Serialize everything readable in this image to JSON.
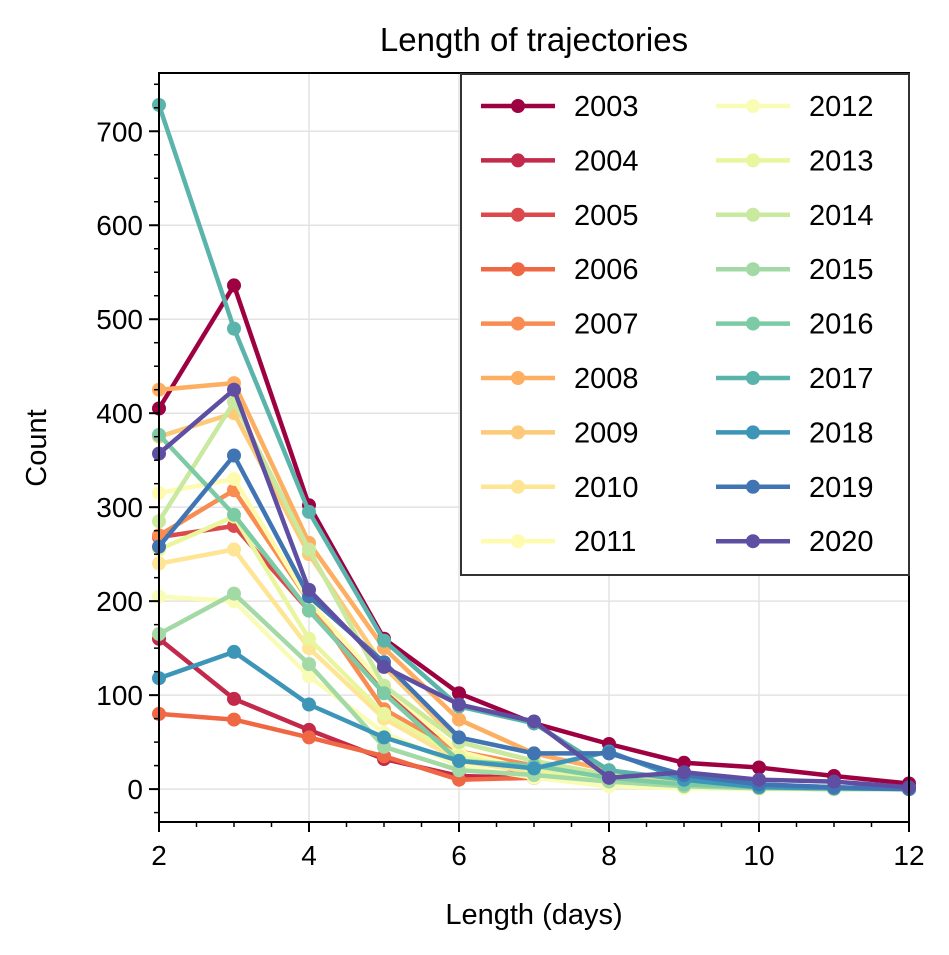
{
  "chart_data": {
    "type": "line",
    "title": "Length of trajectories",
    "xlabel": "Length (days)",
    "ylabel": "Count",
    "xlim": [
      2,
      12
    ],
    "ylim": [
      -35,
      762
    ],
    "xticks": [
      2,
      4,
      6,
      8,
      10,
      12
    ],
    "yticks": [
      0,
      100,
      200,
      300,
      400,
      500,
      600,
      700
    ],
    "grid": true,
    "legend": {
      "position": "top-right",
      "columns": 2
    },
    "x": [
      2,
      3,
      4,
      5,
      6,
      7,
      8,
      9,
      10,
      11,
      12
    ],
    "series": [
      {
        "name": "2003",
        "color": "#9e0142",
        "values": [
          405,
          536,
          302,
          160,
          102,
          70,
          48,
          28,
          23,
          14,
          6
        ]
      },
      {
        "name": "2004",
        "color": "#c2294a",
        "values": [
          160,
          96,
          63,
          32,
          14,
          12,
          8,
          4,
          2,
          1,
          0
        ]
      },
      {
        "name": "2005",
        "color": "#dc494c",
        "values": [
          268,
          280,
          190,
          105,
          35,
          15,
          5,
          2,
          1,
          0,
          0
        ]
      },
      {
        "name": "2006",
        "color": "#f06744",
        "values": [
          80,
          74,
          55,
          35,
          10,
          12,
          8,
          3,
          1,
          0,
          0
        ]
      },
      {
        "name": "2007",
        "color": "#f88c51",
        "values": [
          270,
          318,
          200,
          85,
          40,
          25,
          8,
          3,
          1,
          0,
          0
        ]
      },
      {
        "name": "2008",
        "color": "#fdae61",
        "values": [
          425,
          432,
          262,
          150,
          74,
          38,
          20,
          8,
          3,
          1,
          0
        ]
      },
      {
        "name": "2009",
        "color": "#fdca79",
        "values": [
          375,
          400,
          250,
          130,
          50,
          30,
          15,
          6,
          2,
          1,
          0
        ]
      },
      {
        "name": "2010",
        "color": "#fee593",
        "values": [
          240,
          255,
          150,
          75,
          30,
          18,
          8,
          3,
          1,
          0,
          0
        ]
      },
      {
        "name": "2011",
        "color": "#fefbae",
        "values": [
          315,
          330,
          200,
          110,
          40,
          20,
          5,
          2,
          1,
          0,
          0
        ]
      },
      {
        "name": "2012",
        "color": "#f9fcb5",
        "values": [
          205,
          200,
          120,
          60,
          25,
          12,
          3,
          1,
          0,
          0,
          0
        ]
      },
      {
        "name": "2013",
        "color": "#e9f69d",
        "values": [
          255,
          290,
          160,
          80,
          35,
          20,
          10,
          4,
          2,
          1,
          0
        ]
      },
      {
        "name": "2014",
        "color": "#c9e99e",
        "values": [
          285,
          412,
          255,
          110,
          50,
          30,
          15,
          5,
          2,
          1,
          0
        ]
      },
      {
        "name": "2015",
        "color": "#a3d9a4",
        "values": [
          165,
          208,
          133,
          45,
          20,
          15,
          8,
          3,
          1,
          0,
          0
        ]
      },
      {
        "name": "2016",
        "color": "#7dcba4",
        "values": [
          377,
          292,
          190,
          102,
          30,
          25,
          12,
          5,
          2,
          1,
          0
        ]
      },
      {
        "name": "2017",
        "color": "#5ab4ab",
        "values": [
          728,
          490,
          295,
          158,
          88,
          70,
          20,
          10,
          5,
          2,
          0
        ]
      },
      {
        "name": "2018",
        "color": "#3d95b8",
        "values": [
          118,
          146,
          90,
          55,
          30,
          22,
          40,
          10,
          2,
          1,
          0
        ]
      },
      {
        "name": "2019",
        "color": "#4174b3",
        "values": [
          258,
          355,
          205,
          135,
          55,
          38,
          38,
          15,
          5,
          2,
          0
        ]
      },
      {
        "name": "2020",
        "color": "#5e4fa2",
        "values": [
          357,
          425,
          212,
          130,
          90,
          72,
          12,
          18,
          10,
          8,
          2
        ]
      }
    ]
  }
}
